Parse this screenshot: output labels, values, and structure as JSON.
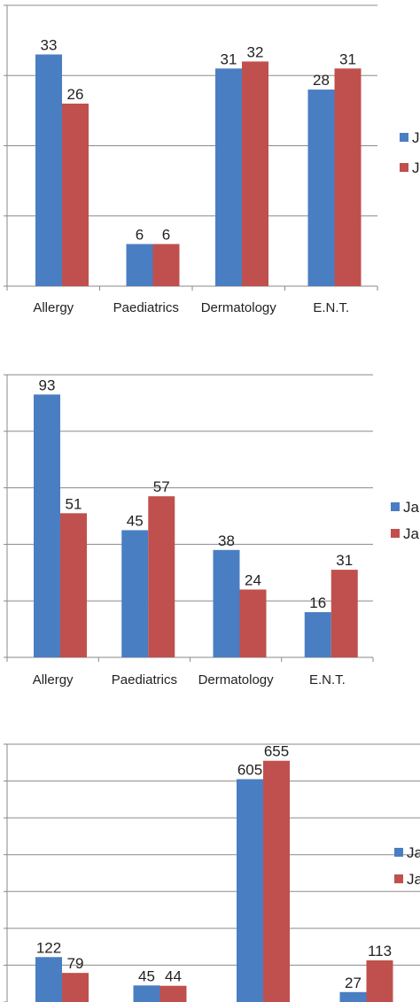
{
  "colors": {
    "series_1": "#4a7ec2",
    "series_2": "#c0504d",
    "gridline": "#8a8a8a",
    "axis": "#8a8a8a",
    "text": "#222222"
  },
  "chart_data": [
    {
      "type": "bar",
      "categories": [
        "Allergy",
        "Paediatrics",
        "Dermatology",
        "E.N.T."
      ],
      "series": [
        {
          "values": [
            33,
            6,
            31,
            28
          ],
          "legend_label": "J"
        },
        {
          "values": [
            26,
            6,
            32,
            31
          ],
          "legend_label": "J"
        }
      ],
      "ylim": [
        0,
        40
      ],
      "grid": true,
      "legend_placement": "right (cropped)"
    },
    {
      "type": "bar",
      "categories": [
        "Allergy",
        "Paediatrics",
        "Dermatology",
        "E.N.T."
      ],
      "series": [
        {
          "values": [
            93,
            45,
            38,
            16
          ],
          "legend_label": "Ja"
        },
        {
          "values": [
            51,
            57,
            24,
            31
          ],
          "legend_label": "Ja"
        }
      ],
      "ylim": [
        0,
        100
      ],
      "grid": true,
      "legend_placement": "right (cropped)"
    },
    {
      "type": "bar",
      "categories": [
        "",
        "",
        "",
        ""
      ],
      "series": [
        {
          "values": [
            122,
            45,
            605,
            27
          ],
          "legend_label": "Ja"
        },
        {
          "values": [
            79,
            44,
            655,
            113
          ],
          "legend_label": "Ja"
        }
      ],
      "ylim": [
        0,
        700
      ],
      "grid": true,
      "legend_placement": "right (cropped)",
      "cropped_bottom": true
    }
  ]
}
